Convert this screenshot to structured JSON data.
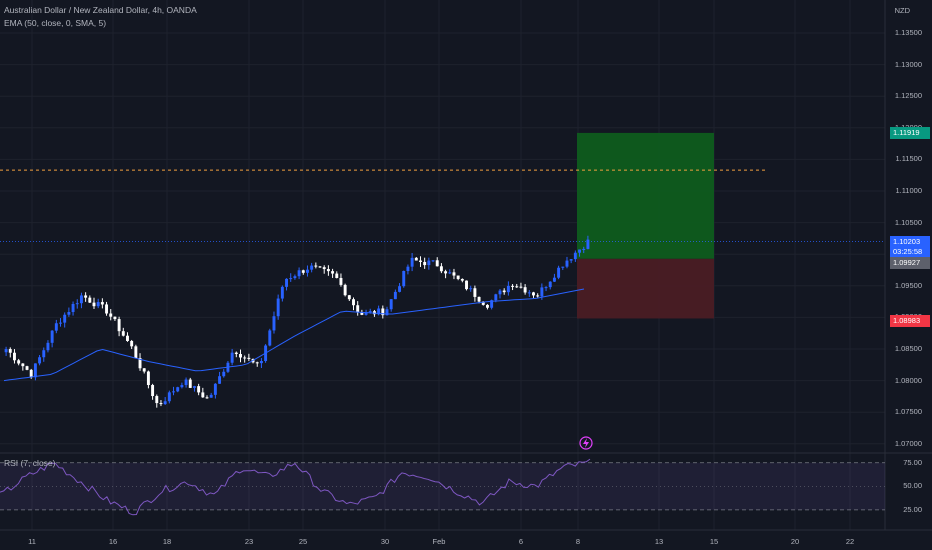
{
  "legend": {
    "symbol": "Australian Dollar / New Zealand Dollar, 4h, OANDA",
    "ema": "EMA (50, close, 0, SMA, 5)",
    "rsi": "RSI (7, close)"
  },
  "currency": "NZD",
  "price_axis": [
    "1.13500",
    "1.13000",
    "1.12500",
    "1.12000",
    "1.11500",
    "1.11000",
    "1.10500",
    "1.10000",
    "1.09500",
    "1.09000",
    "1.08500",
    "1.08000",
    "1.07500",
    "1.07000"
  ],
  "rsi_axis": [
    "75.00",
    "50.00",
    "25.00"
  ],
  "time_axis": [
    "11",
    "16",
    "18",
    "23",
    "25",
    "30",
    "Feb",
    "6",
    "8",
    "13",
    "15",
    "20",
    "22"
  ],
  "tags": {
    "take_profit": "1.11919",
    "current_price": "1.10203",
    "countdown": "03:25:58",
    "entry": "1.09927",
    "stop_loss": "1.08983"
  },
  "colors": {
    "background": "#131722",
    "up_candle": "#2962ff",
    "down_candle": "#ffffff",
    "ema": "#2962ff",
    "rsi": "#7e57c2",
    "profit_zone": "#0e5c1e",
    "loss_zone": "#4a1c24",
    "resistance_line": "#f0a040"
  },
  "chart_data": {
    "type": "candlestick",
    "symbol": "AUDNZD",
    "timeframe": "4h",
    "resistance_level": 1.1133,
    "position": {
      "take_profit": 1.11919,
      "entry": 1.09927,
      "stop_loss": 1.08983
    },
    "ema_waypoints": [
      1.08,
      1.081,
      1.085,
      1.083,
      1.0815,
      1.0825,
      1.087,
      1.091,
      1.0905,
      1.0915,
      1.0925,
      1.093,
      1.0945
    ],
    "close_waypoints": [
      1.085,
      1.081,
      1.089,
      1.0935,
      1.091,
      1.085,
      1.076,
      1.08,
      1.077,
      1.085,
      1.082,
      1.096,
      1.098,
      1.0965,
      1.0905,
      1.091,
      1.099,
      1.0985,
      1.0955,
      1.092,
      1.0955,
      1.0935,
      1.0985,
      1.102
    ],
    "rsi_waypoints": [
      40,
      60,
      75,
      55,
      35,
      22,
      45,
      55,
      40,
      70,
      60,
      75,
      45,
      30,
      38,
      65,
      60,
      45,
      32,
      55,
      50,
      70,
      75
    ]
  }
}
